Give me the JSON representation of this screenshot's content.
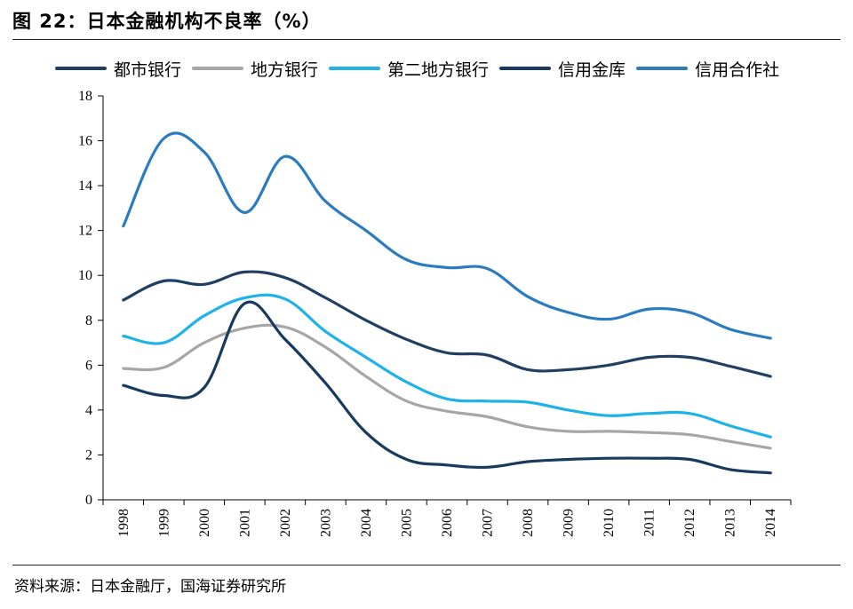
{
  "figure": {
    "title": "图 22：日本金融机构不良率（%）",
    "source": "资料来源：日本金融厅，国海证券研究所"
  },
  "chart_data": {
    "type": "line",
    "title": "日本金融机构不良率（%）",
    "xlabel": "",
    "ylabel": "",
    "x": [
      "1998",
      "1999",
      "2000",
      "2001",
      "2002",
      "2003",
      "2004",
      "2005",
      "2006",
      "2007",
      "2008",
      "2009",
      "2010",
      "2011",
      "2012",
      "2013",
      "2014"
    ],
    "ylim": [
      0,
      18
    ],
    "yticks": [
      0,
      2,
      4,
      6,
      8,
      10,
      12,
      14,
      16,
      18
    ],
    "grid": false,
    "legend_position": "top",
    "series": [
      {
        "name": "都市银行",
        "color": "#1f3f63",
        "values": [
          8.9,
          9.75,
          9.6,
          10.15,
          9.9,
          9.0,
          8.0,
          7.15,
          6.55,
          6.45,
          5.8,
          5.8,
          6.0,
          6.35,
          6.35,
          5.95,
          5.5
        ]
      },
      {
        "name": "地方银行",
        "color": "#a6a6a6",
        "values": [
          5.85,
          5.9,
          7.0,
          7.65,
          7.7,
          6.8,
          5.5,
          4.4,
          3.95,
          3.7,
          3.25,
          3.05,
          3.05,
          3.0,
          2.9,
          2.6,
          2.3
        ]
      },
      {
        "name": "第二地方银行",
        "color": "#1fb2e8",
        "values": [
          7.3,
          7.0,
          8.2,
          9.0,
          8.95,
          7.5,
          6.35,
          5.25,
          4.5,
          4.4,
          4.35,
          4.0,
          3.75,
          3.85,
          3.85,
          3.3,
          2.8
        ]
      },
      {
        "name": "信用金库",
        "color": "#173a5e",
        "values": [
          5.1,
          4.65,
          5.0,
          8.75,
          7.15,
          5.2,
          3.0,
          1.8,
          1.55,
          1.45,
          1.7,
          1.8,
          1.85,
          1.85,
          1.8,
          1.35,
          1.2
        ]
      },
      {
        "name": "信用合作社",
        "color": "#2b7bc0",
        "values": [
          12.2,
          16.1,
          15.5,
          12.8,
          15.3,
          13.3,
          12.0,
          10.7,
          10.35,
          10.3,
          9.05,
          8.35,
          8.05,
          8.5,
          8.35,
          7.6,
          7.2
        ]
      }
    ]
  }
}
